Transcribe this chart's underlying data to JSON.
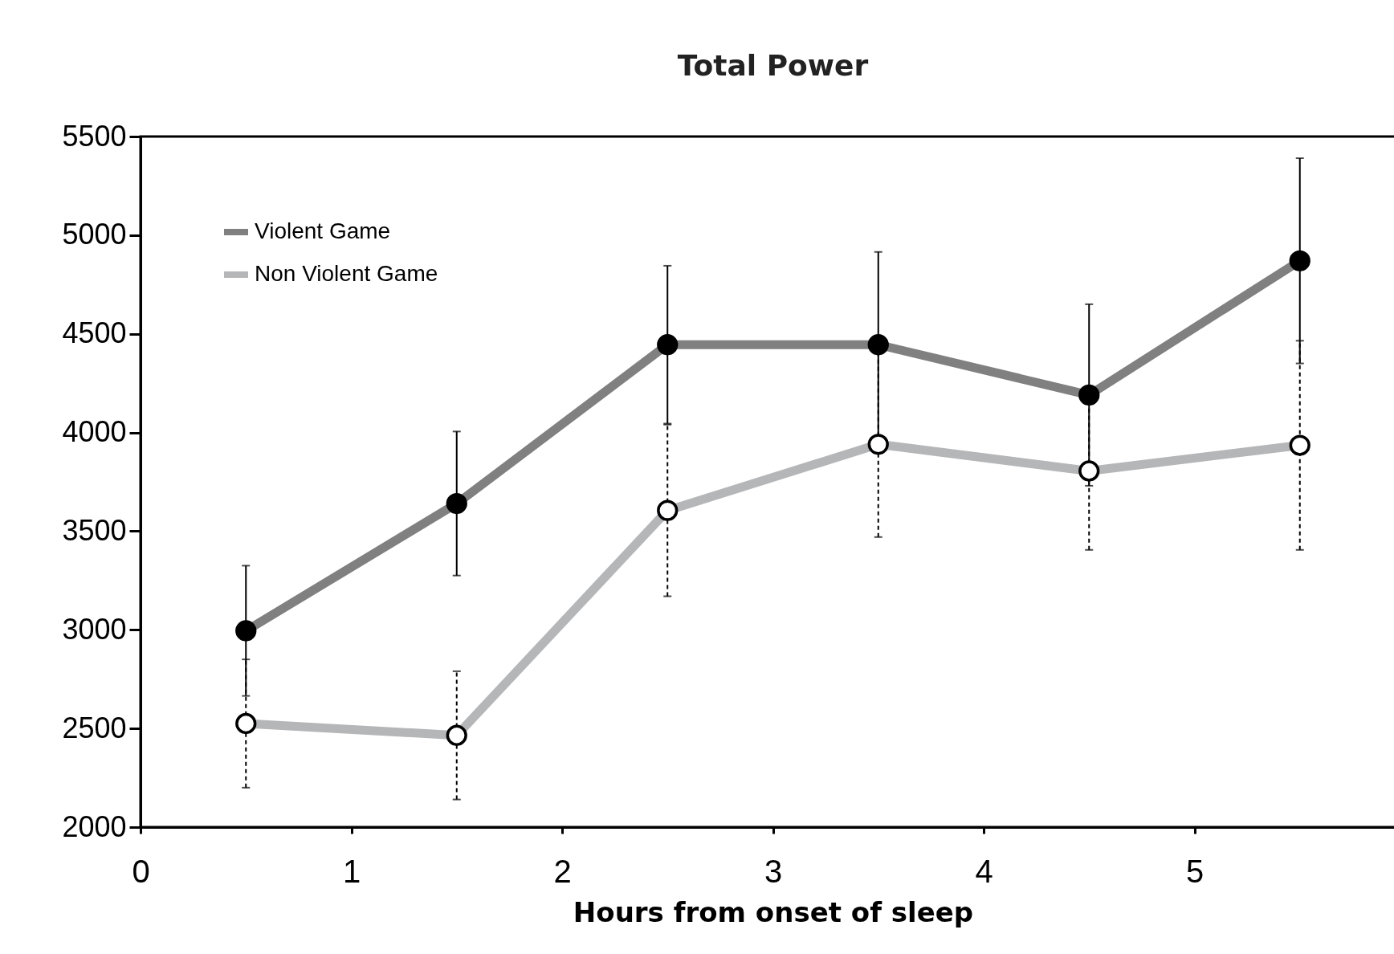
{
  "chart_data": {
    "type": "line",
    "title": "Total Power",
    "xlabel": "Hours from onset of sleep",
    "x": [
      0.5,
      1.5,
      2.5,
      3.5,
      4.5,
      5.5
    ],
    "series": [
      {
        "name": "Violent Game",
        "color": "#808080",
        "values": [
          2995,
          3640,
          4445,
          4445,
          4190,
          4870
        ],
        "errors": [
          330,
          365,
          400,
          470,
          460,
          520
        ]
      },
      {
        "name": "Non Violent Game",
        "color": "#b4b6b8",
        "values": [
          2525,
          2465,
          3605,
          3940,
          3805,
          3935
        ],
        "errors": [
          325,
          325,
          435,
          470,
          400,
          530
        ]
      }
    ],
    "xlim": [
      0,
      6
    ],
    "xticks": [
      0,
      1,
      2,
      3,
      4,
      5
    ],
    "ylim": [
      2000,
      5500
    ],
    "yticks": [
      2000,
      2500,
      3000,
      3500,
      4000,
      4500,
      5000,
      5500
    ],
    "marker": "circle",
    "grid": false,
    "legend": "top left"
  }
}
